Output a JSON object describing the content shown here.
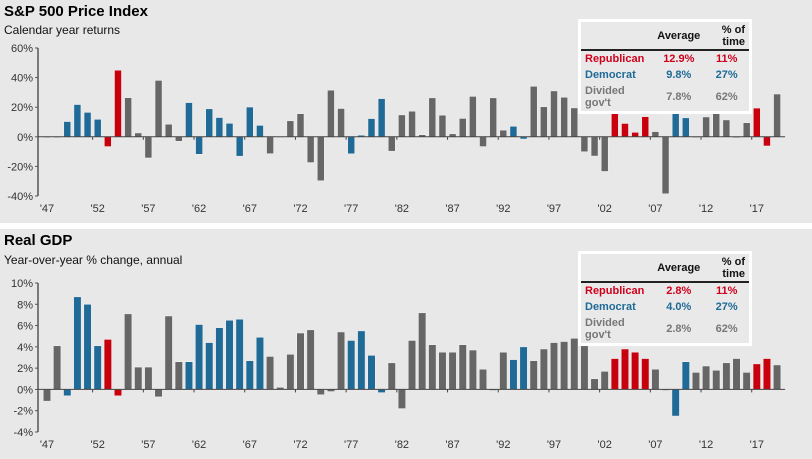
{
  "colors": {
    "Republican": "#c8000d",
    "Democrat": "#1f6a96",
    "Divided": "#666666",
    "background": "#e8e8e8"
  },
  "chart_data": [
    {
      "type": "bar",
      "title": "S&P 500 Price Index",
      "subtitle": "Calendar year returns",
      "xlabel": "",
      "ylabel": "",
      "ylim": [
        -40,
        60
      ],
      "yticks": [
        "60%",
        "40%",
        "20%",
        "0%",
        "-20%",
        "-40%"
      ],
      "ytick_values": [
        60,
        40,
        20,
        0,
        -20,
        -40
      ],
      "xtick_labels": [
        "'47",
        "'52",
        "'57",
        "'62",
        "'67",
        "'72",
        "'77",
        "'82",
        "'87",
        "'92",
        "'97",
        "'02",
        "'07",
        "'12",
        "'17"
      ],
      "xtick_years": [
        1947,
        1952,
        1957,
        1962,
        1967,
        1972,
        1977,
        1982,
        1987,
        1992,
        1997,
        2002,
        2007,
        2012,
        2017
      ],
      "grid": false,
      "legend": {
        "placement": "top-right",
        "headers": [
          "",
          "Average",
          "% of time"
        ],
        "rows": [
          {
            "label": "Republican",
            "average": "12.9%",
            "pct_time": "11%",
            "party": "rep"
          },
          {
            "label": "Democrat",
            "average": "9.8%",
            "pct_time": "27%",
            "party": "dem"
          },
          {
            "label": "Divided gov't",
            "average": "7.8%",
            "pct_time": "62%",
            "party": "div"
          }
        ]
      },
      "start_year": 1947,
      "values": [
        0.0,
        0.0,
        10.3,
        21.8,
        16.5,
        11.8,
        -6.6,
        45.0,
        26.4,
        2.6,
        -14.3,
        38.1,
        8.5,
        -3.0,
        23.1,
        -11.8,
        18.9,
        13.0,
        9.1,
        -13.1,
        20.1,
        7.7,
        -11.4,
        0.1,
        10.8,
        15.6,
        -17.4,
        -29.7,
        31.5,
        19.1,
        -11.5,
        1.1,
        12.3,
        25.8,
        -9.7,
        14.8,
        17.3,
        1.4,
        26.3,
        14.6,
        2.0,
        12.4,
        27.3,
        -6.6,
        26.3,
        4.5,
        7.1,
        -1.5,
        34.1,
        20.3,
        31.0,
        26.7,
        19.5,
        -10.1,
        -13.0,
        -23.4,
        26.4,
        9.0,
        3.0,
        13.6,
        3.5,
        -38.5,
        23.5,
        12.8,
        0.0,
        13.4,
        29.6,
        11.4,
        -0.7,
        9.5,
        19.4,
        -6.2,
        28.9
      ],
      "parties": [
        "div",
        "div",
        "dem",
        "dem",
        "dem",
        "dem",
        "rep",
        "rep",
        "div",
        "div",
        "div",
        "div",
        "div",
        "div",
        "dem",
        "dem",
        "dem",
        "dem",
        "dem",
        "dem",
        "dem",
        "dem",
        "div",
        "div",
        "div",
        "div",
        "div",
        "div",
        "div",
        "div",
        "dem",
        "dem",
        "dem",
        "dem",
        "div",
        "div",
        "div",
        "div",
        "div",
        "div",
        "div",
        "div",
        "div",
        "div",
        "div",
        "div",
        "dem",
        "dem",
        "div",
        "div",
        "div",
        "div",
        "div",
        "div",
        "div",
        "div",
        "rep",
        "rep",
        "rep",
        "rep",
        "div",
        "div",
        "dem",
        "dem",
        "div",
        "div",
        "div",
        "div",
        "div",
        "div",
        "rep",
        "rep",
        "div"
      ]
    },
    {
      "type": "bar",
      "title": "Real GDP",
      "subtitle": "Year-over-year % change, annual",
      "xlabel": "",
      "ylabel": "",
      "ylim": [
        -4,
        10
      ],
      "yticks": [
        "10%",
        "8%",
        "6%",
        "4%",
        "2%",
        "0%",
        "-2%",
        "-4%"
      ],
      "ytick_values": [
        10,
        8,
        6,
        4,
        2,
        0,
        -2,
        -4
      ],
      "xtick_labels": [
        "'47",
        "'52",
        "'57",
        "'62",
        "'67",
        "'72",
        "'77",
        "'82",
        "'87",
        "'92",
        "'97",
        "'02",
        "'07",
        "'12",
        "'17"
      ],
      "xtick_years": [
        1947,
        1952,
        1957,
        1962,
        1967,
        1972,
        1977,
        1982,
        1987,
        1992,
        1997,
        2002,
        2007,
        2012,
        2017
      ],
      "grid": false,
      "legend": {
        "placement": "top-right",
        "headers": [
          "",
          "Average",
          "% of time"
        ],
        "rows": [
          {
            "label": "Republican",
            "average": "2.8%",
            "pct_time": "11%",
            "party": "rep"
          },
          {
            "label": "Democrat",
            "average": "4.0%",
            "pct_time": "27%",
            "party": "dem"
          },
          {
            "label": "Divided gov't",
            "average": "2.8%",
            "pct_time": "62%",
            "party": "div"
          }
        ]
      },
      "start_year": 1947,
      "values": [
        -1.1,
        4.1,
        -0.6,
        8.7,
        8.0,
        4.1,
        4.7,
        -0.6,
        7.1,
        2.1,
        2.1,
        -0.7,
        6.9,
        2.6,
        2.6,
        6.1,
        4.4,
        5.8,
        6.5,
        6.6,
        2.7,
        4.9,
        3.1,
        0.2,
        3.3,
        5.3,
        5.6,
        -0.5,
        -0.2,
        5.4,
        4.6,
        5.5,
        3.2,
        -0.3,
        2.5,
        -1.8,
        4.6,
        7.2,
        4.2,
        3.5,
        3.5,
        4.2,
        3.7,
        1.9,
        -0.1,
        3.5,
        2.8,
        4.0,
        2.7,
        3.8,
        4.4,
        4.5,
        4.8,
        4.1,
        1.0,
        1.7,
        2.9,
        3.8,
        3.5,
        2.9,
        1.9,
        -0.1,
        -2.5,
        2.6,
        1.6,
        2.2,
        1.8,
        2.5,
        2.9,
        1.6,
        2.4,
        2.9,
        2.3
      ],
      "parties": [
        "div",
        "div",
        "dem",
        "dem",
        "dem",
        "dem",
        "rep",
        "rep",
        "div",
        "div",
        "div",
        "div",
        "div",
        "div",
        "dem",
        "dem",
        "dem",
        "dem",
        "dem",
        "dem",
        "dem",
        "dem",
        "div",
        "div",
        "div",
        "div",
        "div",
        "div",
        "div",
        "div",
        "dem",
        "dem",
        "dem",
        "dem",
        "div",
        "div",
        "div",
        "div",
        "div",
        "div",
        "div",
        "div",
        "div",
        "div",
        "div",
        "div",
        "dem",
        "dem",
        "div",
        "div",
        "div",
        "div",
        "div",
        "div",
        "div",
        "div",
        "rep",
        "rep",
        "rep",
        "rep",
        "div",
        "div",
        "dem",
        "dem",
        "div",
        "div",
        "div",
        "div",
        "div",
        "div",
        "rep",
        "rep",
        "div"
      ]
    }
  ]
}
